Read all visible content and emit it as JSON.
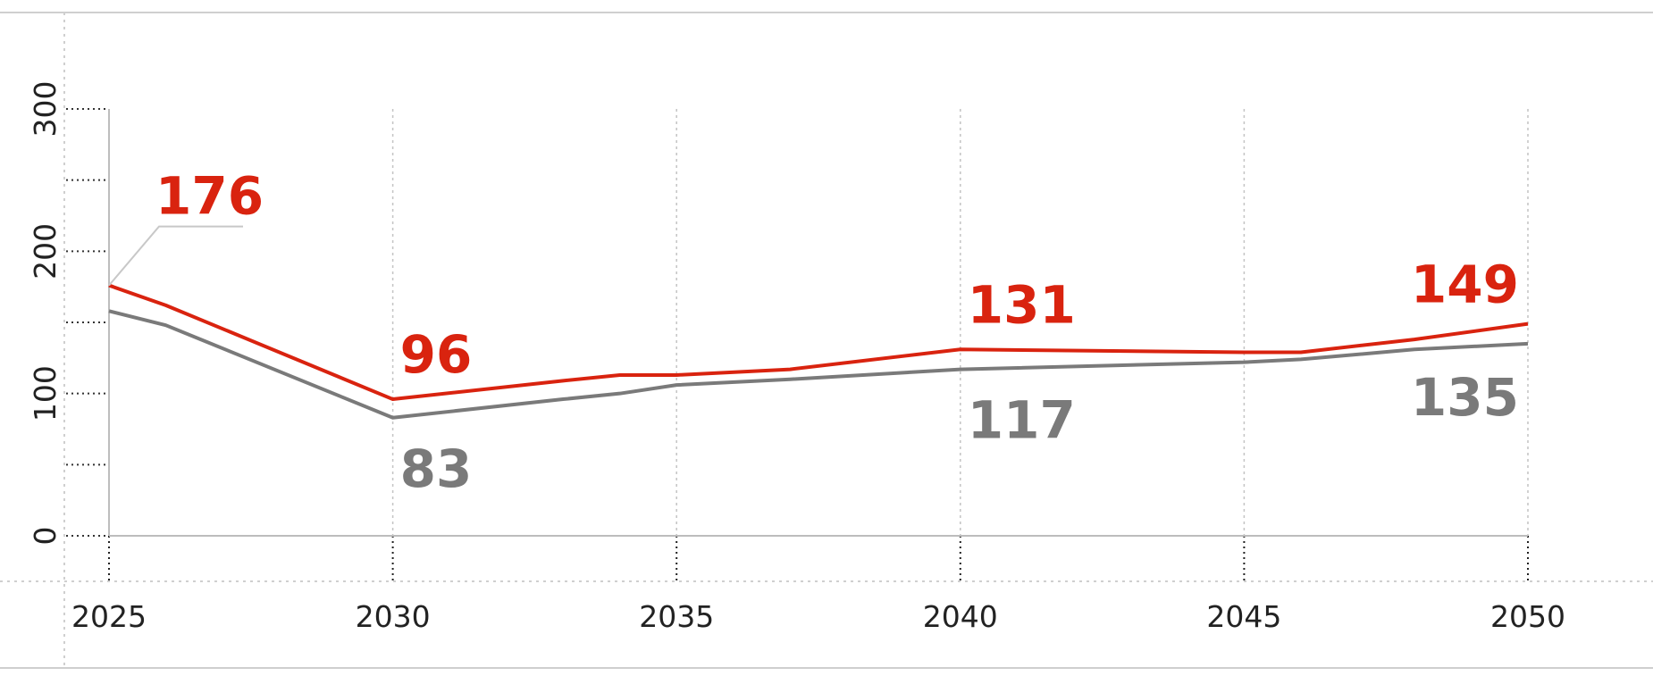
{
  "chart_data": {
    "type": "line",
    "title": "",
    "xlabel": "",
    "ylabel": "",
    "x": [
      2025,
      2026,
      2030,
      2033,
      2034,
      2035,
      2037,
      2040,
      2045,
      2046,
      2048,
      2050
    ],
    "xticks": [
      "2025",
      "2030",
      "2035",
      "2040",
      "2045",
      "2050"
    ],
    "xtick_values": [
      2025,
      2030,
      2035,
      2040,
      2045,
      2050
    ],
    "yticks": [
      "0",
      "100",
      "200",
      "300"
    ],
    "ytick_values": [
      0,
      100,
      200,
      300
    ],
    "ylim": [
      0,
      300
    ],
    "xlim": [
      2025,
      2050
    ],
    "grid": true,
    "series": [
      {
        "color": "#d9230f",
        "values": [
          176,
          162,
          96,
          109,
          113,
          113,
          117,
          131,
          129,
          129,
          138,
          149
        ],
        "labels": [
          {
            "x": 2025,
            "y": 176,
            "text": "176"
          },
          {
            "x": 2030,
            "y": 96,
            "text": "96"
          },
          {
            "x": 2040,
            "y": 131,
            "text": "131"
          },
          {
            "x": 2050,
            "y": 149,
            "text": "149"
          }
        ]
      },
      {
        "color": "#7a7a7a",
        "values": [
          158,
          148,
          83,
          96,
          100,
          106,
          110,
          117,
          122,
          124,
          131,
          135
        ],
        "labels": [
          {
            "x": 2030,
            "y": 83,
            "text": "83"
          },
          {
            "x": 2040,
            "y": 117,
            "text": "117"
          },
          {
            "x": 2050,
            "y": 135,
            "text": "135"
          }
        ]
      }
    ]
  }
}
